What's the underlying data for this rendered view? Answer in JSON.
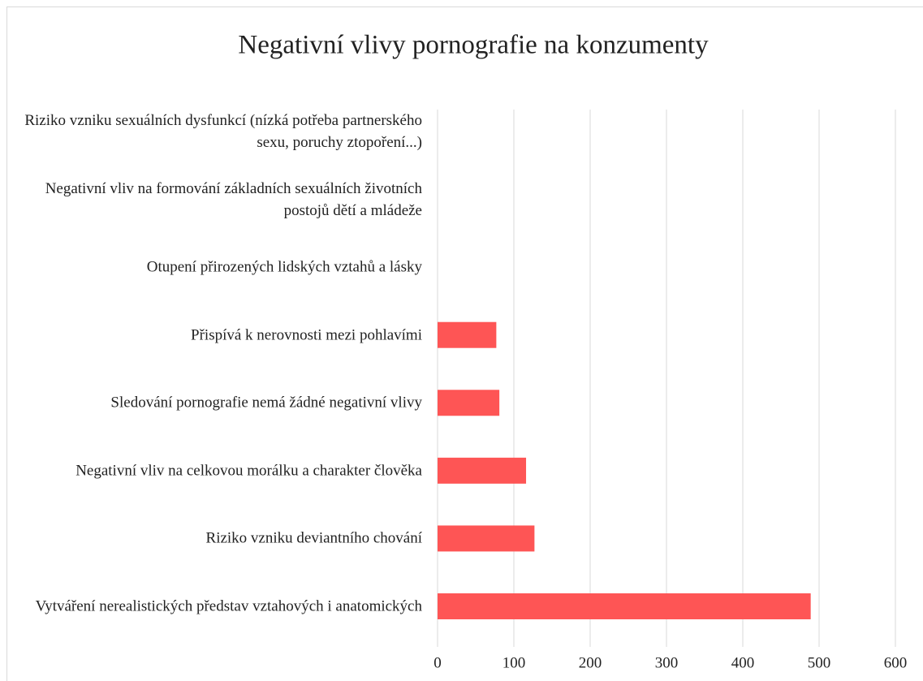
{
  "chart_data": {
    "type": "hbar",
    "title": "Negativní vlivy pornografie na konzumenty",
    "categories": [
      "Riziko vzniku sexuálních dysfunkcí (nízká potřeba partnerského sexu, poruchy ztopoření...)",
      "Negativní vliv na formování základních sexuálních životních postojů dětí a mládeže",
      "Otupení přirozených lidských vztahů a lásky",
      "Přispívá k nerovnosti mezi pohlavími",
      "Sledování pornografie nemá žádné negativní vlivy",
      "Negativní vliv na celkovou morálku a charakter člověka",
      "Riziko vzniku deviantního chování",
      "Vytváření nerealistických představ vztahových i anatomických"
    ],
    "values": [
      0,
      0,
      0,
      77,
      81,
      116,
      127,
      489
    ],
    "color": "#fe5555",
    "xlim": [
      0,
      600
    ],
    "xticks": [
      0,
      100,
      200,
      300,
      400,
      500,
      600
    ],
    "grid": true
  }
}
